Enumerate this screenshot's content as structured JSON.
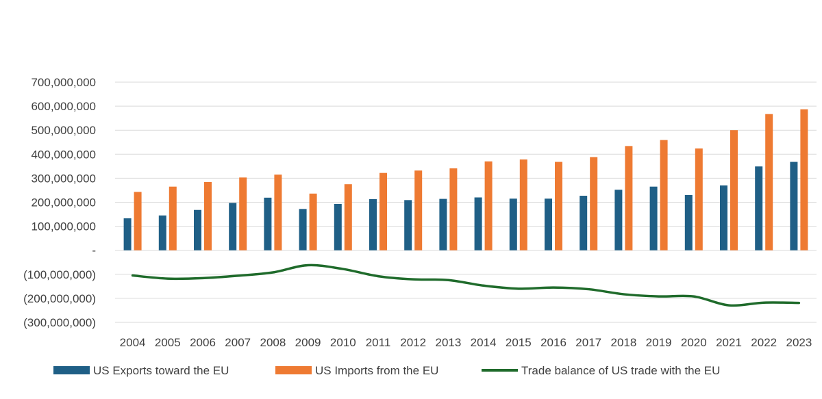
{
  "chart_data": {
    "type": "bar",
    "title": "",
    "xlabel": "",
    "ylabel": "",
    "categories": [
      "2004",
      "2005",
      "2006",
      "2007",
      "2008",
      "2009",
      "2010",
      "2011",
      "2012",
      "2013",
      "2014",
      "2015",
      "2016",
      "2017",
      "2018",
      "2019",
      "2020",
      "2021",
      "2022",
      "2023"
    ],
    "ylim": [
      -300000000,
      700000000
    ],
    "yticks": [
      {
        "value": 700000000,
        "label": "700,000,000"
      },
      {
        "value": 600000000,
        "label": "600,000,000"
      },
      {
        "value": 500000000,
        "label": "500,000,000"
      },
      {
        "value": 400000000,
        "label": "400,000,000"
      },
      {
        "value": 300000000,
        "label": "300,000,000"
      },
      {
        "value": 200000000,
        "label": "200,000,000"
      },
      {
        "value": 100000000,
        "label": "100,000,000"
      },
      {
        "value": 0,
        "label": "-"
      },
      {
        "value": -100000000,
        "label": "(100,000,000)"
      },
      {
        "value": -200000000,
        "label": "(200,000,000)"
      },
      {
        "value": -300000000,
        "label": "(300,000,000)"
      }
    ],
    "grid": true,
    "legend_position": "bottom",
    "series": [
      {
        "name": "US Exports toward the EU",
        "type": "bar",
        "color": "#1f5f86",
        "values": [
          133000000,
          145000000,
          168000000,
          197000000,
          219000000,
          172000000,
          193000000,
          213000000,
          209000000,
          214000000,
          220000000,
          215000000,
          215000000,
          227000000,
          252000000,
          265000000,
          230000000,
          270000000,
          349000000,
          368000000
        ]
      },
      {
        "name": "US Imports from the EU",
        "type": "bar",
        "color": "#ee7a32",
        "values": [
          243000000,
          265000000,
          284000000,
          303000000,
          315000000,
          236000000,
          275000000,
          322000000,
          332000000,
          341000000,
          370000000,
          378000000,
          368000000,
          388000000,
          434000000,
          459000000,
          424000000,
          500000000,
          567000000,
          587000000
        ]
      },
      {
        "name": "Trade balance of US trade with the EU",
        "type": "line",
        "color": "#1f6b2b",
        "values": [
          -105000000,
          -118000000,
          -116000000,
          -106000000,
          -92000000,
          -62000000,
          -78000000,
          -108000000,
          -121000000,
          -124000000,
          -147000000,
          -160000000,
          -155000000,
          -162000000,
          -183000000,
          -192000000,
          -192000000,
          -229000000,
          -218000000,
          -219000000
        ]
      }
    ]
  }
}
